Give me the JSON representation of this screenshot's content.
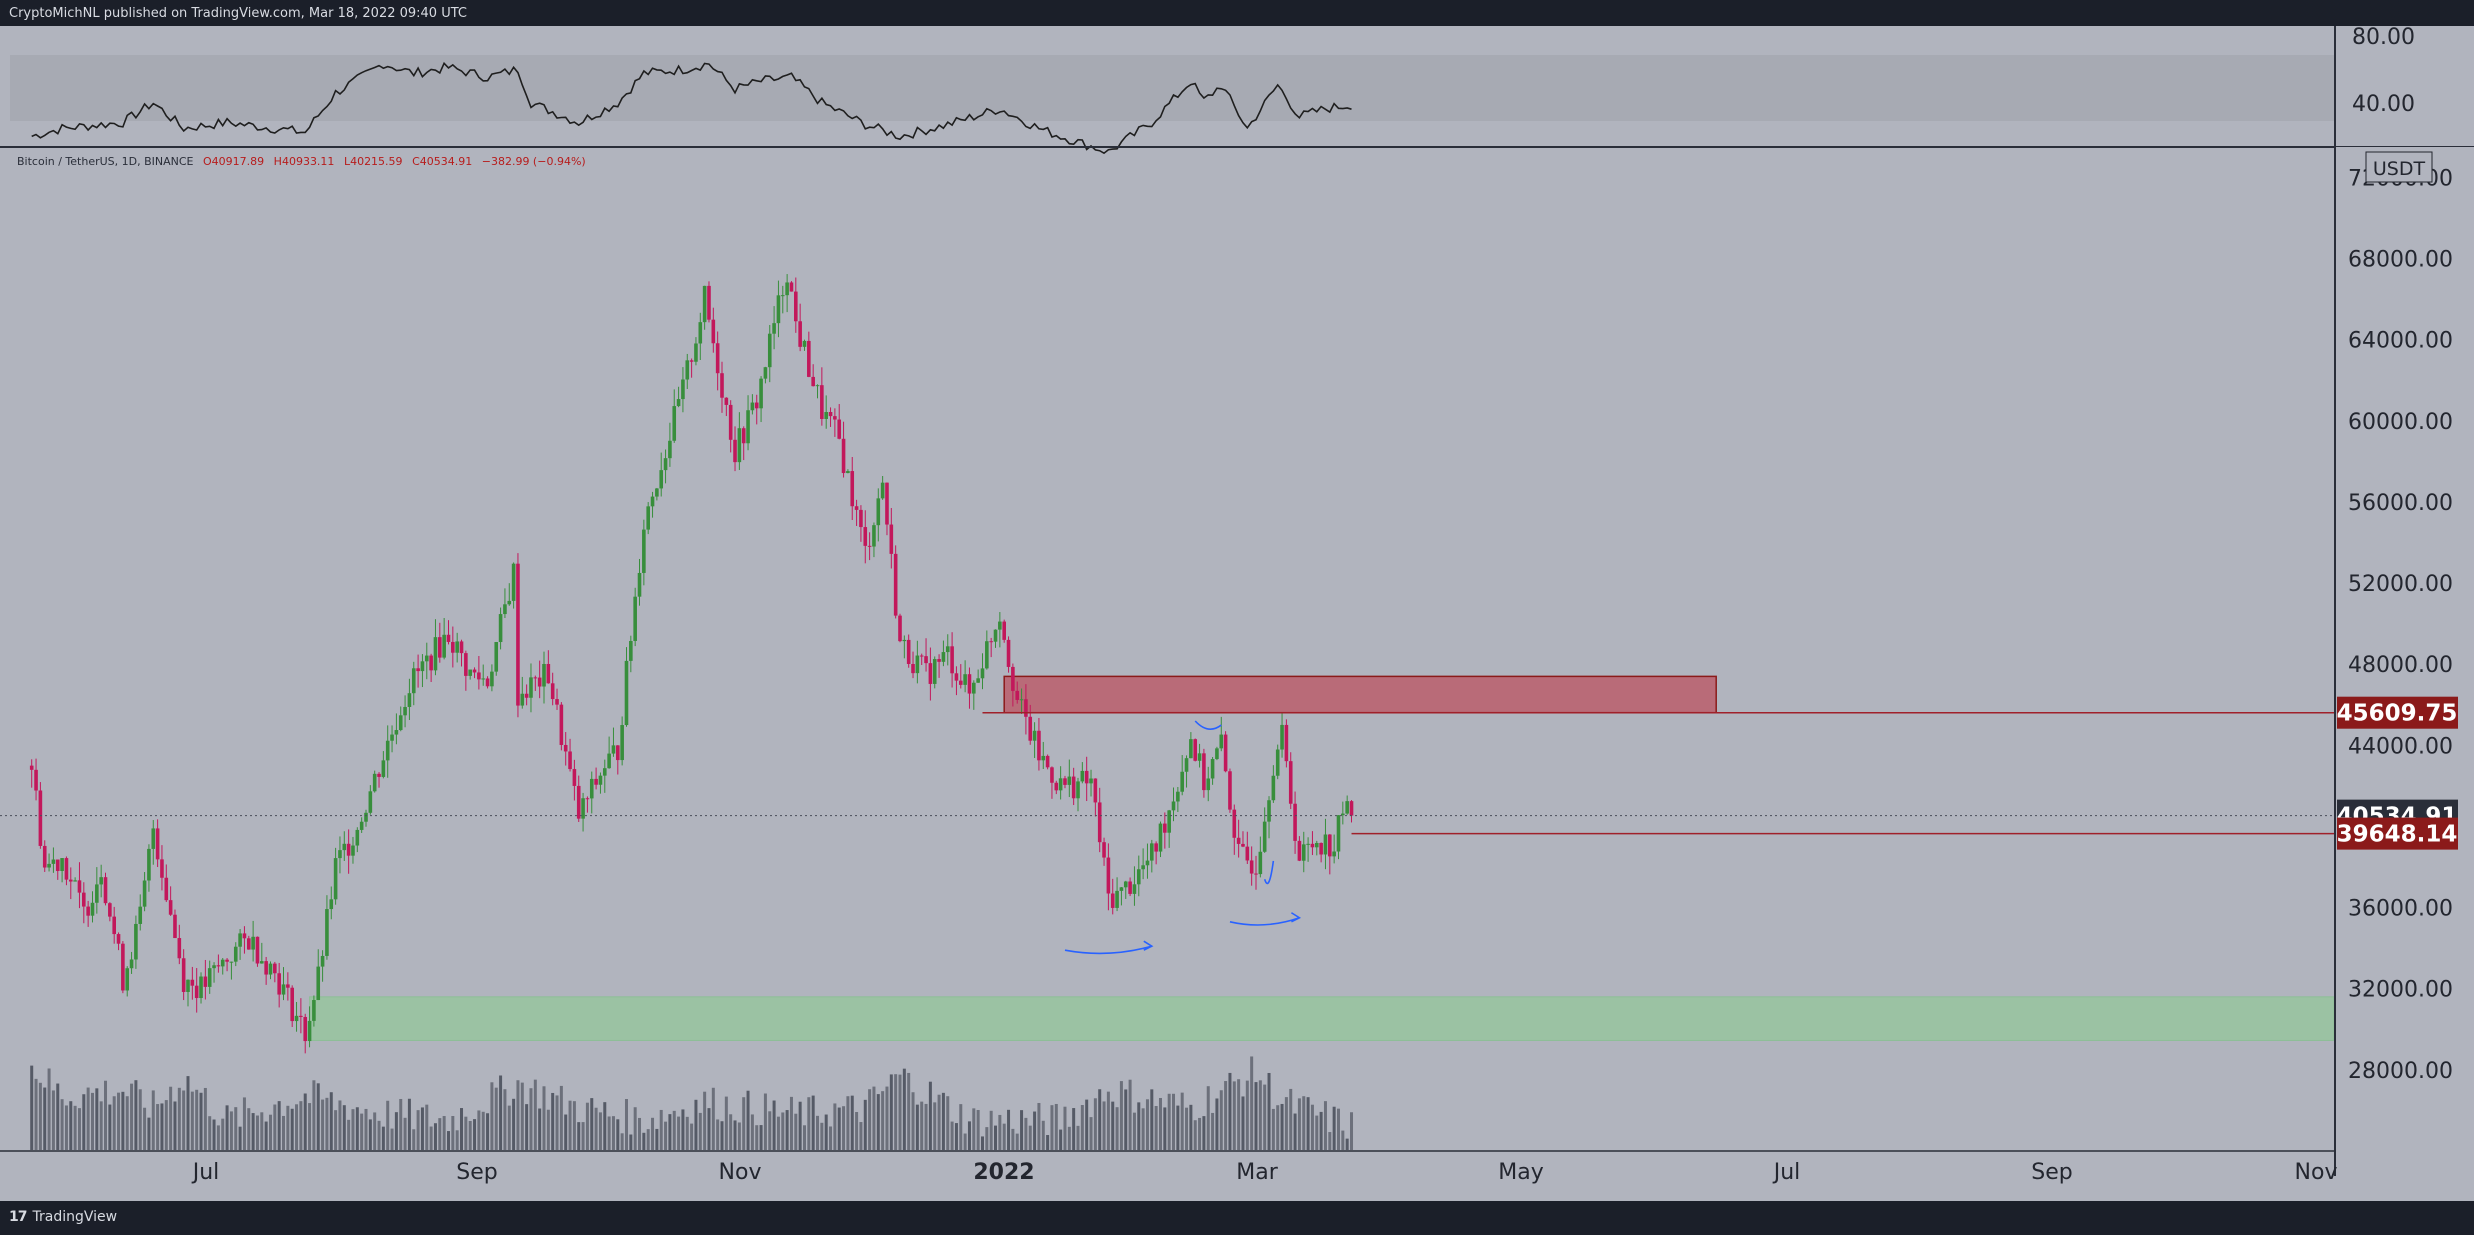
{
  "header": {
    "published_by": "CryptoMichNL published on TradingView.com, Mar 18, 2022 09:40 UTC"
  },
  "footer": {
    "logo_mark": "17",
    "logo_text": "TradingView"
  },
  "colors": {
    "background": "#b1b4be",
    "frame": "#1b1f29",
    "bull": "#388e3c",
    "bear": "#c2185b",
    "resistance_zone": "#b96b78",
    "support_zone": "#9bc2a3",
    "level_line": "#a0202a",
    "level_label": "#8b1a1a",
    "current_label": "#2a2e39",
    "annotation": "#2962ff"
  },
  "chart_data": {
    "type": "candlestick",
    "symbol_line": "Bitcoin / TetherUS, 1D, BINANCE",
    "ohlc": {
      "open": "O40917.89",
      "high": "H40933.11",
      "low": "L40215.59",
      "close": "C40534.91",
      "change": "−382.99 (−0.94%)"
    },
    "currency": "USDT",
    "ylim": [
      24000,
      73500
    ],
    "y_ticks": [
      "72000.00",
      "68000.00",
      "64000.00",
      "60000.00",
      "56000.00",
      "52000.00",
      "48000.00",
      "44000.00",
      "36000.00",
      "32000.00",
      "28000.00"
    ],
    "x_ticks": [
      "Jul",
      "Sep",
      "Nov",
      "2022",
      "Mar",
      "May",
      "Jul",
      "Sep",
      "Nov"
    ],
    "price_points": [
      [
        "2021-05-18",
        43000
      ],
      [
        "2021-05-21",
        38000
      ],
      [
        "2021-05-25",
        38500
      ],
      [
        "2021-05-30",
        35700
      ],
      [
        "2021-06-03",
        38000
      ],
      [
        "2021-06-08",
        32500
      ],
      [
        "2021-06-12",
        35500
      ],
      [
        "2021-06-15",
        40000
      ],
      [
        "2021-06-22",
        32500
      ],
      [
        "2021-06-26",
        32000
      ],
      [
        "2021-07-02",
        33500
      ],
      [
        "2021-07-07",
        34500
      ],
      [
        "2021-07-13",
        32800
      ],
      [
        "2021-07-20",
        29800
      ],
      [
        "2021-07-23",
        32500
      ],
      [
        "2021-07-27",
        38000
      ],
      [
        "2021-08-01",
        40000
      ],
      [
        "2021-08-07",
        43500
      ],
      [
        "2021-08-13",
        47000
      ],
      [
        "2021-08-22",
        49500
      ],
      [
        "2021-08-27",
        47500
      ],
      [
        "2021-08-31",
        47200
      ],
      [
        "2021-09-06",
        52500
      ],
      [
        "2021-09-07",
        46500
      ],
      [
        "2021-09-14",
        47500
      ],
      [
        "2021-09-21",
        40500
      ],
      [
        "2021-09-27",
        43000
      ],
      [
        "2021-09-30",
        43800
      ],
      [
        "2021-10-06",
        55000
      ],
      [
        "2021-10-15",
        61500
      ],
      [
        "2021-10-20",
        66000
      ],
      [
        "2021-10-27",
        58500
      ],
      [
        "2021-11-01",
        61000
      ],
      [
        "2021-11-08",
        67500
      ],
      [
        "2021-11-10",
        64800
      ],
      [
        "2021-11-16",
        60500
      ],
      [
        "2021-11-20",
        59000
      ],
      [
        "2021-11-26",
        53500
      ],
      [
        "2021-11-30",
        57000
      ],
      [
        "2021-12-04",
        49000
      ],
      [
        "2021-12-10",
        47500
      ],
      [
        "2021-12-15",
        48500
      ],
      [
        "2021-12-20",
        46500
      ],
      [
        "2021-12-27",
        50600
      ],
      [
        "2021-12-31",
        46200
      ],
      [
        "2022-01-05",
        43500
      ],
      [
        "2022-01-10",
        42000
      ],
      [
        "2022-01-17",
        42200
      ],
      [
        "2022-01-21",
        36500
      ],
      [
        "2022-01-24",
        36700
      ],
      [
        "2022-01-31",
        38500
      ],
      [
        "2022-02-05",
        41500
      ],
      [
        "2022-02-09",
        44400
      ],
      [
        "2022-02-12",
        42200
      ],
      [
        "2022-02-16",
        44000
      ],
      [
        "2022-02-20",
        38500
      ],
      [
        "2022-02-24",
        38200
      ],
      [
        "2022-02-28",
        43200
      ],
      [
        "2022-03-02",
        44400
      ],
      [
        "2022-03-06",
        38400
      ],
      [
        "2022-03-10",
        39400
      ],
      [
        "2022-03-14",
        39000
      ],
      [
        "2022-03-16",
        40900
      ],
      [
        "2022-03-18",
        40534.91
      ]
    ],
    "levels": [
      {
        "label": "45609.75",
        "value": 45609.75
      },
      {
        "label": "39648.14",
        "value": 39648.14
      }
    ],
    "current_price": {
      "label": "40534.91",
      "value": 40534.91
    },
    "zones": [
      {
        "kind": "resistance",
        "from": "2021-12-28",
        "to": "2022-06-10",
        "low": 45609.75,
        "high": 47400
      },
      {
        "kind": "support",
        "from": "2021-07-21",
        "to": "2022-11-01",
        "low": 29450,
        "high": 31600
      }
    ],
    "rsi": {
      "ylim": [
        30,
        90
      ],
      "y_ticks": [
        "80.00",
        "40.00"
      ],
      "band": [
        30,
        70
      ],
      "points": [
        [
          "2021-05-18",
          38
        ],
        [
          "2021-05-25",
          42
        ],
        [
          "2021-06-08",
          45
        ],
        [
          "2021-06-15",
          55
        ],
        [
          "2021-06-22",
          42
        ],
        [
          "2021-07-02",
          45
        ],
        [
          "2021-07-20",
          40
        ],
        [
          "2021-07-27",
          60
        ],
        [
          "2021-08-07",
          75
        ],
        [
          "2021-08-14",
          70
        ],
        [
          "2021-08-22",
          73
        ],
        [
          "2021-08-31",
          68
        ],
        [
          "2021-09-07",
          72
        ],
        [
          "2021-09-10",
          55
        ],
        [
          "2021-09-21",
          45
        ],
        [
          "2021-09-30",
          55
        ],
        [
          "2021-10-06",
          70
        ],
        [
          "2021-10-15",
          72
        ],
        [
          "2021-10-21",
          75
        ],
        [
          "2021-10-27",
          62
        ],
        [
          "2021-11-02",
          66
        ],
        [
          "2021-11-09",
          68
        ],
        [
          "2021-11-16",
          55
        ],
        [
          "2021-11-26",
          44
        ],
        [
          "2021-12-04",
          38
        ],
        [
          "2021-12-15",
          44
        ],
        [
          "2021-12-27",
          52
        ],
        [
          "2022-01-05",
          42
        ],
        [
          "2022-01-10",
          38
        ],
        [
          "2022-01-21",
          30
        ],
        [
          "2022-01-31",
          45
        ],
        [
          "2022-02-09",
          66
        ],
        [
          "2022-02-12",
          56
        ],
        [
          "2022-02-16",
          64
        ],
        [
          "2022-02-22",
          42
        ],
        [
          "2022-03-01",
          64
        ],
        [
          "2022-03-06",
          48
        ],
        [
          "2022-03-12",
          52
        ],
        [
          "2022-03-18",
          54
        ]
      ]
    },
    "volume": {
      "ylim": [
        0,
        100
      ],
      "points": [
        [
          "2021-05-18",
          70
        ],
        [
          "2021-05-25",
          45
        ],
        [
          "2021-06-08",
          50
        ],
        [
          "2021-06-15",
          35
        ],
        [
          "2021-06-22",
          60
        ],
        [
          "2021-07-02",
          25
        ],
        [
          "2021-07-20",
          45
        ],
        [
          "2021-08-07",
          30
        ],
        [
          "2021-08-22",
          25
        ],
        [
          "2021-09-07",
          55
        ],
        [
          "2021-09-21",
          35
        ],
        [
          "2021-10-06",
          25
        ],
        [
          "2021-10-20",
          40
        ],
        [
          "2021-11-10",
          30
        ],
        [
          "2021-11-26",
          35
        ],
        [
          "2021-12-04",
          62
        ],
        [
          "2021-12-20",
          25
        ],
        [
          "2022-01-10",
          25
        ],
        [
          "2022-01-21",
          50
        ],
        [
          "2022-02-09",
          35
        ],
        [
          "2022-02-24",
          65
        ],
        [
          "2022-03-02",
          40
        ],
        [
          "2022-03-18",
          20
        ]
      ]
    },
    "annotations": [
      {
        "kind": "arrow",
        "from": [
          "2022-01-11",
          33900
        ],
        "to": [
          "2022-01-31",
          34100
        ]
      },
      {
        "kind": "arrow",
        "from": [
          "2022-02-18",
          35300
        ],
        "to": [
          "2022-03-06",
          35500
        ]
      },
      {
        "kind": "hook",
        "from": [
          "2022-02-10",
          45200
        ],
        "to": [
          "2022-02-16",
          45000
        ]
      },
      {
        "kind": "hook",
        "from": [
          "2022-02-26",
          37400
        ],
        "to": [
          "2022-02-28",
          38300
        ]
      }
    ]
  }
}
